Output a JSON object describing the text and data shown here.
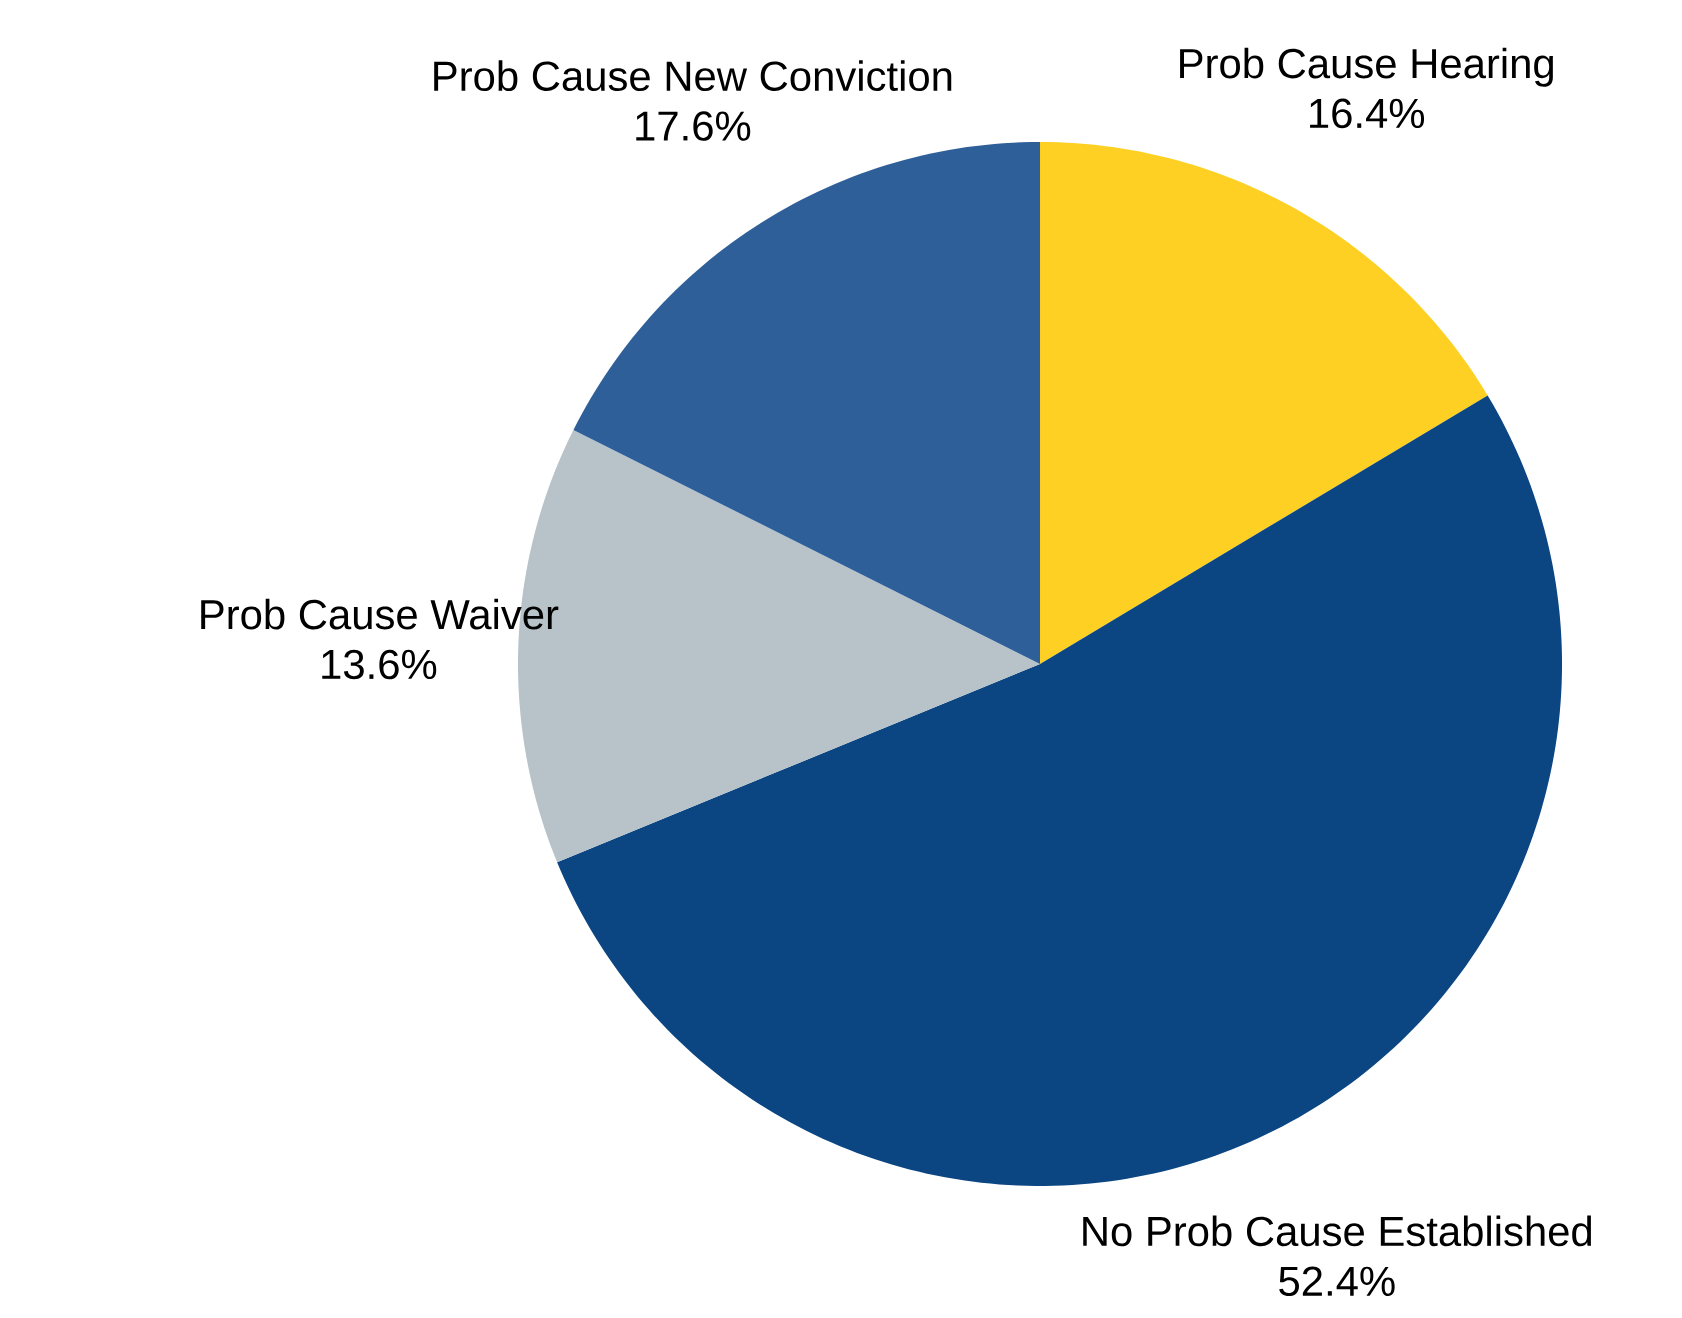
{
  "chart_data": {
    "type": "pie",
    "categories": [
      "Prob Cause Hearing",
      "No Prob Cause Established",
      "Prob Cause Waiver",
      "Prob Cause New Conviction"
    ],
    "values": [
      16.4,
      52.4,
      13.6,
      17.6
    ],
    "value_labels": [
      "16.4%",
      "52.4%",
      "13.6%",
      "17.6%"
    ],
    "colors": [
      "#fdd023",
      "#0b4682",
      "#b8c2c9",
      "#2e5f98"
    ],
    "legend": false
  }
}
